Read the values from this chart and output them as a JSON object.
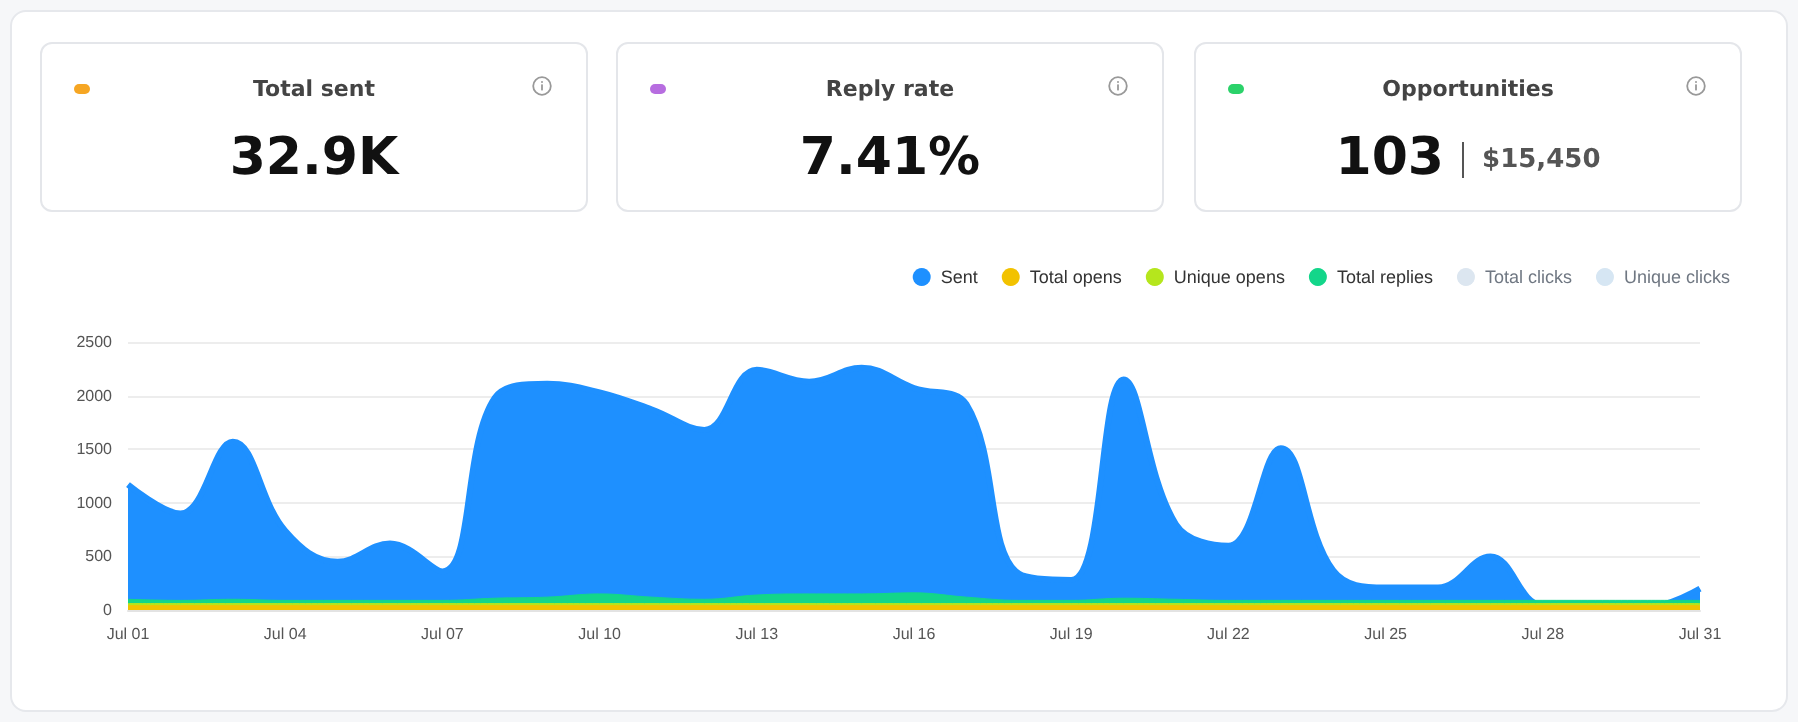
{
  "chart_data": [
    {
      "type": "other",
      "title": "Total sent",
      "annotations": [
        "32.9K"
      ]
    },
    {
      "type": "other",
      "title": "Reply rate",
      "annotations": [
        "7.41%"
      ]
    },
    {
      "type": "other",
      "title": "Opportunities",
      "annotations": [
        "103",
        "$15,450"
      ]
    },
    {
      "type": "area",
      "categories": [
        "Jul 01",
        null,
        null,
        "Jul 04",
        null,
        null,
        "Jul 07",
        null,
        null,
        "Jul 10",
        null,
        null,
        "Jul 13",
        null,
        null,
        "Jul 16",
        null,
        null,
        "Jul 19",
        null,
        null,
        "Jul 22",
        null,
        null,
        "Jul 25",
        null,
        null,
        "Jul 28",
        null,
        null,
        "Jul 31"
      ],
      "series": [
        {
          "name": "Sent",
          "color": "#1e90ff",
          "values": [
            1170,
            900,
            1570,
            740,
            450,
            620,
            360,
            1980,
            2110,
            2030,
            1870,
            1680,
            2240,
            2130,
            2260,
            2070,
            1920,
            340,
            280,
            2150,
            800,
            600,
            1510,
            370,
            210,
            210,
            500,
            40,
            30,
            30,
            200
          ]
        },
        {
          "name": "Total opens",
          "color": "#f2c200",
          "values": [
            40,
            40,
            40,
            40,
            40,
            40,
            40,
            40,
            40,
            40,
            40,
            40,
            40,
            40,
            40,
            40,
            40,
            40,
            40,
            40,
            40,
            40,
            40,
            40,
            40,
            40,
            40,
            40,
            40,
            40,
            40
          ]
        },
        {
          "name": "Unique opens",
          "color": "#b5e61d",
          "values": [
            60,
            60,
            60,
            60,
            60,
            60,
            60,
            60,
            60,
            60,
            60,
            60,
            60,
            60,
            60,
            60,
            60,
            60,
            60,
            60,
            60,
            60,
            60,
            60,
            60,
            60,
            60,
            60,
            60,
            60,
            60
          ]
        },
        {
          "name": "Total replies",
          "color": "#13d68a",
          "values": [
            100,
            90,
            100,
            90,
            90,
            90,
            90,
            110,
            120,
            150,
            120,
            100,
            140,
            150,
            150,
            160,
            120,
            90,
            90,
            110,
            100,
            90,
            90,
            90,
            90,
            90,
            90,
            90,
            90,
            90,
            90
          ]
        },
        {
          "name": "Total clicks",
          "color": "#dce6f0",
          "values": [
            null,
            null,
            null,
            null,
            null,
            null,
            null,
            null,
            null,
            null,
            null,
            null,
            null,
            null,
            null,
            null,
            null,
            null,
            null,
            null,
            null,
            null,
            null,
            null,
            null,
            null,
            null,
            null,
            null,
            null,
            null
          ]
        },
        {
          "name": "Unique clicks",
          "color": "#d6e6f3",
          "values": [
            null,
            null,
            null,
            null,
            null,
            null,
            null,
            null,
            null,
            null,
            null,
            null,
            null,
            null,
            null,
            null,
            null,
            null,
            null,
            null,
            null,
            null,
            null,
            null,
            null,
            null,
            null,
            null,
            null,
            null,
            null
          ]
        }
      ],
      "ylim": [
        0,
        2500
      ],
      "yticks": [
        0,
        500,
        1000,
        1500,
        2000,
        2500
      ],
      "grid": "y",
      "legend": "top right",
      "marker": "none",
      "line_style": "solid"
    }
  ]
}
